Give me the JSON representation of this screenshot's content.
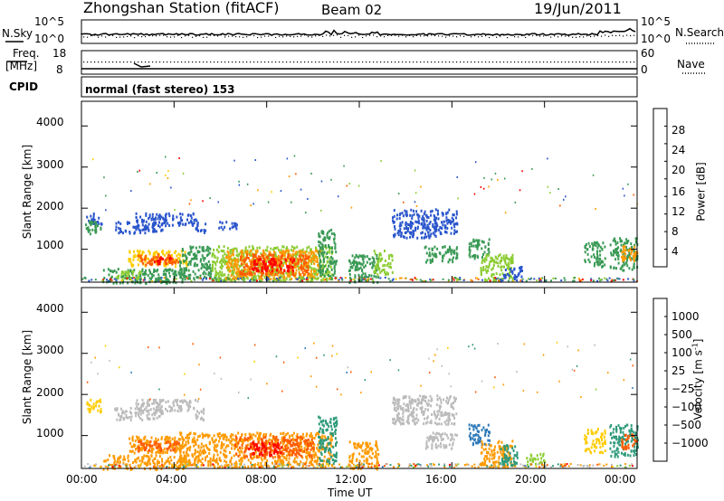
{
  "header": {
    "station": "Zhongshan Station (fitACF)",
    "beam": "Beam 02",
    "date": "19/Jun/2011"
  },
  "noise_panel": {
    "left_label": "N.Sky",
    "right_label": "N.Search",
    "left_ticks": [
      "10^5",
      "10^0"
    ],
    "right_ticks": [
      "10^5",
      "10^0"
    ]
  },
  "freq_panel": {
    "left_label_1": "Freq.",
    "left_label_2": "[MHz]",
    "right_label": "Nave",
    "left_ticks": [
      "18",
      "8"
    ],
    "right_ticks": [
      "60",
      "0"
    ]
  },
  "cpid": {
    "label": "CPID",
    "text": "normal (fast stereo) 153"
  },
  "chart_data": [
    {
      "type": "heatmap",
      "name": "power",
      "ylabel": "Slant Range [km]",
      "yticks": [
        1000,
        2000,
        3000,
        4000
      ],
      "ylim": [
        200,
        4600
      ],
      "xlim": [
        0,
        24
      ],
      "colorbar": {
        "label": "Power [dB]",
        "ticks": [
          "28",
          "24",
          "20",
          "16",
          "12",
          "8",
          "4"
        ],
        "colors": [
          "#ff0000",
          "#ff5a00",
          "#ff9a00",
          "#ffcc00",
          "#8ccc33",
          "#3a9a55",
          "#336699",
          "#2a55cc",
          "#0000ff"
        ]
      },
      "regions": [
        {
          "t0": 0.2,
          "t1": 0.9,
          "r0": 1600,
          "r1": 1900,
          "v": "#2a55cc"
        },
        {
          "t0": 0.1,
          "t1": 0.8,
          "r0": 1400,
          "r1": 1700,
          "v": "#3a9a55"
        },
        {
          "t0": 1.4,
          "t1": 3.5,
          "r0": 1400,
          "r1": 1700,
          "v": "#2a55cc"
        },
        {
          "t0": 2.3,
          "t1": 5.0,
          "r0": 1600,
          "r1": 1900,
          "v": "#2a55cc"
        },
        {
          "t0": 4.9,
          "t1": 5.4,
          "r0": 1400,
          "r1": 1700,
          "v": "#2a55cc"
        },
        {
          "t0": 5.8,
          "t1": 6.7,
          "r0": 1500,
          "r1": 1700,
          "v": "#2a55cc"
        },
        {
          "t0": 2.0,
          "t1": 4.6,
          "r0": 600,
          "r1": 1000,
          "v": "#ffcc00"
        },
        {
          "t0": 2.4,
          "t1": 4.2,
          "r0": 650,
          "r1": 900,
          "v": "#ff5a00"
        },
        {
          "t0": 3.0,
          "t1": 3.9,
          "r0": 680,
          "r1": 850,
          "v": "#ff0000"
        },
        {
          "t0": 4.2,
          "t1": 5.6,
          "r0": 300,
          "r1": 1100,
          "v": "#3a9a55"
        },
        {
          "t0": 0.9,
          "t1": 4.5,
          "r0": 200,
          "r1": 550,
          "v": "#3a9a55"
        },
        {
          "t0": 1.4,
          "t1": 2.6,
          "r0": 300,
          "r1": 500,
          "v": "#8ccc33"
        },
        {
          "t0": 5.6,
          "t1": 10.8,
          "r0": 250,
          "r1": 1100,
          "v": "#8ccc33"
        },
        {
          "t0": 6.2,
          "t1": 10.3,
          "r0": 300,
          "r1": 1000,
          "v": "#ff9a00"
        },
        {
          "t0": 6.8,
          "t1": 9.8,
          "r0": 400,
          "r1": 900,
          "v": "#ff5a00"
        },
        {
          "t0": 7.3,
          "t1": 9.2,
          "r0": 500,
          "r1": 800,
          "v": "#ff0000"
        },
        {
          "t0": 10.2,
          "t1": 11.0,
          "r0": 300,
          "r1": 1500,
          "v": "#3a9a55"
        },
        {
          "t0": 11.5,
          "t1": 12.8,
          "r0": 200,
          "r1": 900,
          "v": "#3a9a55"
        },
        {
          "t0": 12.6,
          "t1": 13.4,
          "r0": 400,
          "r1": 1000,
          "v": "#8ccc33"
        },
        {
          "t0": 13.4,
          "t1": 15.3,
          "r0": 1300,
          "r1": 2000,
          "v": "#2a55cc"
        },
        {
          "t0": 15.2,
          "t1": 16.2,
          "r0": 1400,
          "r1": 2000,
          "v": "#2a55cc"
        },
        {
          "t0": 14.8,
          "t1": 16.2,
          "r0": 700,
          "r1": 1100,
          "v": "#3a9a55"
        },
        {
          "t0": 16.7,
          "t1": 17.6,
          "r0": 800,
          "r1": 1300,
          "v": "#3a9a55"
        },
        {
          "t0": 17.2,
          "t1": 18.6,
          "r0": 250,
          "r1": 900,
          "v": "#8ccc33"
        },
        {
          "t0": 18.2,
          "t1": 19.0,
          "r0": 300,
          "r1": 600,
          "v": "#2a55cc"
        },
        {
          "t0": 21.7,
          "t1": 22.6,
          "r0": 600,
          "r1": 1200,
          "v": "#3a9a55"
        },
        {
          "t0": 22.8,
          "t1": 24.0,
          "r0": 500,
          "r1": 1300,
          "v": "#3a9a55"
        },
        {
          "t0": 23.3,
          "t1": 24.0,
          "r0": 700,
          "r1": 1100,
          "v": "#ff9a00"
        }
      ]
    },
    {
      "type": "heatmap",
      "name": "velocity",
      "ylabel": "Slant Range [km]",
      "xlabel": "Time UT",
      "yticks": [
        1000,
        2000,
        3000,
        4000
      ],
      "ylim": [
        200,
        4600
      ],
      "xlim": [
        0,
        24
      ],
      "xticks": [
        "00:00",
        "04:00",
        "08:00",
        "12:00",
        "16:00",
        "20:00",
        "00:00"
      ],
      "colorbar": {
        "label": "Velocity [m s",
        "label_sup": "-1",
        "label_end": "]",
        "ticks": [
          "1000",
          "500",
          "100",
          "25",
          "−25",
          "−100",
          "−500",
          "−1000"
        ],
        "colors": [
          "#1c3aa8",
          "#2e7ab8",
          "#2e9a7a",
          "#8ccc33",
          "#bbbbbb",
          "#ffcc00",
          "#ff9a00",
          "#ff5a00",
          "#ff0000"
        ]
      },
      "regions": [
        {
          "t0": 0.2,
          "t1": 0.9,
          "r0": 1600,
          "r1": 1900,
          "v": "#ffcc00"
        },
        {
          "t0": 1.4,
          "t1": 3.5,
          "r0": 1400,
          "r1": 1700,
          "v": "#bbbbbb"
        },
        {
          "t0": 2.3,
          "t1": 5.0,
          "r0": 1600,
          "r1": 1900,
          "v": "#bbbbbb"
        },
        {
          "t0": 4.9,
          "t1": 5.4,
          "r0": 1400,
          "r1": 1700,
          "v": "#bbbbbb"
        },
        {
          "t0": 2.0,
          "t1": 4.6,
          "r0": 600,
          "r1": 1000,
          "v": "#ff9a00"
        },
        {
          "t0": 2.4,
          "t1": 4.2,
          "r0": 650,
          "r1": 900,
          "v": "#ff5a00"
        },
        {
          "t0": 0.9,
          "t1": 4.5,
          "r0": 200,
          "r1": 550,
          "v": "#ff9a00"
        },
        {
          "t0": 4.2,
          "t1": 5.6,
          "r0": 300,
          "r1": 1100,
          "v": "#ff9a00"
        },
        {
          "t0": 5.6,
          "t1": 10.8,
          "r0": 250,
          "r1": 1100,
          "v": "#ff9a00"
        },
        {
          "t0": 6.6,
          "t1": 10.0,
          "r0": 500,
          "r1": 1000,
          "v": "#ff5a00"
        },
        {
          "t0": 7.2,
          "t1": 8.6,
          "r0": 550,
          "r1": 850,
          "v": "#ff0000"
        },
        {
          "t0": 10.2,
          "t1": 11.0,
          "r0": 300,
          "r1": 1500,
          "v": "#2e9a7a"
        },
        {
          "t0": 11.5,
          "t1": 12.8,
          "r0": 200,
          "r1": 900,
          "v": "#ff9a00"
        },
        {
          "t0": 13.4,
          "t1": 16.2,
          "r0": 1300,
          "r1": 2000,
          "v": "#bbbbbb"
        },
        {
          "t0": 14.8,
          "t1": 16.2,
          "r0": 700,
          "r1": 1100,
          "v": "#bbbbbb"
        },
        {
          "t0": 16.7,
          "t1": 17.6,
          "r0": 800,
          "r1": 1300,
          "v": "#2e7ab8"
        },
        {
          "t0": 17.2,
          "t1": 18.6,
          "r0": 250,
          "r1": 900,
          "v": "#ff9a00"
        },
        {
          "t0": 18.0,
          "t1": 18.8,
          "r0": 300,
          "r1": 800,
          "v": "#2e9a7a"
        },
        {
          "t0": 19.2,
          "t1": 20.0,
          "r0": 300,
          "r1": 600,
          "v": "#8ccc33"
        },
        {
          "t0": 21.7,
          "t1": 22.6,
          "r0": 600,
          "r1": 1200,
          "v": "#ffcc00"
        },
        {
          "t0": 22.8,
          "t1": 24.0,
          "r0": 500,
          "r1": 1300,
          "v": "#2e9a7a"
        },
        {
          "t0": 23.3,
          "t1": 24.0,
          "r0": 700,
          "r1": 1100,
          "v": "#ff5a00"
        }
      ]
    }
  ]
}
